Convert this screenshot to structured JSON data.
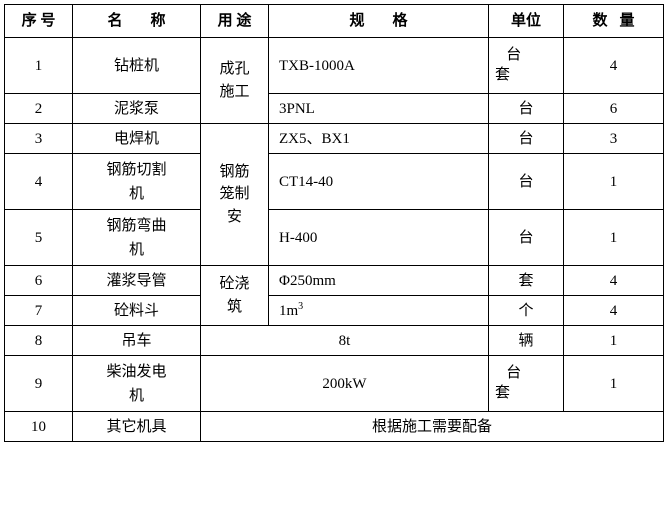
{
  "headers": {
    "seq": "序 号",
    "name": "名称",
    "use": "用 途",
    "spec": "规格",
    "unit": "单位",
    "qty": "数量"
  },
  "uses": {
    "drilling": "成孔施工",
    "rebar": "钢筋笼制安",
    "concrete": "砼浇筑"
  },
  "rows": [
    {
      "seq": "1",
      "name": "钻桩机",
      "spec": "TXB-1000A",
      "unit_multi": "台套",
      "qty": "4"
    },
    {
      "seq": "2",
      "name": "泥浆泵",
      "spec": "3PNL",
      "unit": "台",
      "qty": "6"
    },
    {
      "seq": "3",
      "name": "电焊机",
      "spec": "ZX5、BX1",
      "unit": "台",
      "qty": "3"
    },
    {
      "seq": "4",
      "name": "钢筋切割机",
      "spec": "CT14-40",
      "unit": "台",
      "qty": "1"
    },
    {
      "seq": "5",
      "name": "钢筋弯曲机",
      "spec": "H-400",
      "unit": "台",
      "qty": "1"
    },
    {
      "seq": "6",
      "name": "灌浆导管",
      "spec": "Φ250mm",
      "unit": "套",
      "qty": "4"
    },
    {
      "seq": "7",
      "name": "砼料斗",
      "spec": "1m³",
      "unit": "个",
      "qty": "4"
    },
    {
      "seq": "8",
      "name": "吊车",
      "spec": "8t",
      "unit": "辆",
      "qty": "1"
    },
    {
      "seq": "9",
      "name": "柴油发电机",
      "spec": "200kW",
      "unit_multi": "台套",
      "qty": "1"
    },
    {
      "seq": "10",
      "name": "其它机具",
      "spec_merged": "根据施工需要配备"
    }
  ],
  "colors": {
    "border": "#000000",
    "background": "#ffffff",
    "text": "#000000"
  }
}
